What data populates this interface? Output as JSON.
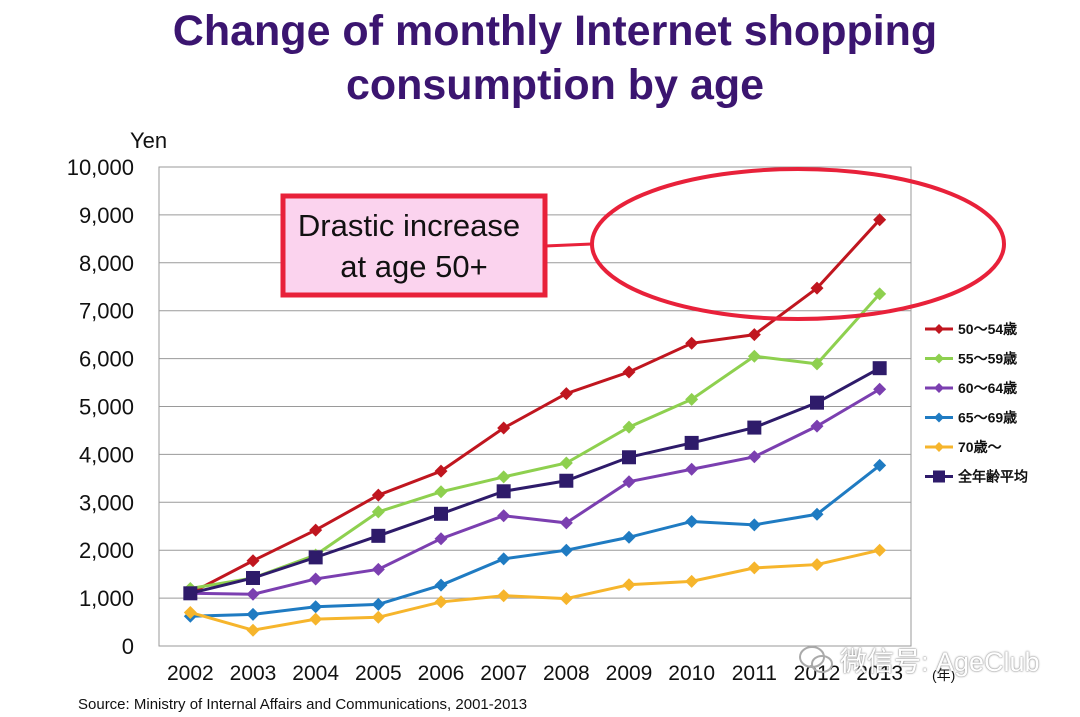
{
  "title": "Change of monthly Internet shopping consumption by age",
  "title_line1": "Change of monthly Internet shopping",
  "title_line2": "consumption by age",
  "source": "Source: Ministry of Internal Affairs and Communications, 2001-2013",
  "watermark": "微信号: AgeClub",
  "callout": {
    "line1": "Drastic increase",
    "line2": "at age 50+",
    "border_color": "#e8213a",
    "fill_color": "#fbd3ee"
  },
  "colors": {
    "title": "#3b1570",
    "highlight": "#e8213a"
  },
  "chart_data": {
    "type": "line",
    "title": "Change of monthly Internet shopping consumption by age",
    "ylabel": "Yen",
    "xunit": "(年)",
    "x": [
      "2002",
      "2003",
      "2004",
      "2005",
      "2006",
      "2007",
      "2008",
      "2009",
      "2010",
      "2011",
      "2012",
      "2013"
    ],
    "ylim": [
      0,
      10000
    ],
    "yticks": [
      "0",
      "1,000",
      "2,000",
      "3,000",
      "4,000",
      "5,000",
      "6,000",
      "7,000",
      "8,000",
      "9,000",
      "10,000"
    ],
    "grid": true,
    "legend_position": "right",
    "series": [
      {
        "name": "50～54歳",
        "color": "#c0161f",
        "marker": "diamond",
        "values": [
          1100,
          1780,
          2420,
          3150,
          3650,
          4550,
          5270,
          5720,
          6320,
          6500,
          7470,
          8900
        ]
      },
      {
        "name": "55～59歳",
        "color": "#8ed04f",
        "marker": "diamond",
        "values": [
          1200,
          1420,
          1900,
          2800,
          3220,
          3530,
          3820,
          4570,
          5150,
          6050,
          5890,
          7350
        ]
      },
      {
        "name": "60～64歳",
        "color": "#7b3fb0",
        "marker": "diamond",
        "values": [
          1100,
          1080,
          1400,
          1600,
          2240,
          2720,
          2570,
          3430,
          3690,
          3950,
          4590,
          5360
        ]
      },
      {
        "name": "65～69歳",
        "color": "#1f7bc2",
        "marker": "diamond",
        "values": [
          620,
          660,
          820,
          870,
          1270,
          1820,
          2000,
          2270,
          2600,
          2530,
          2750,
          3770
        ]
      },
      {
        "name": "70歳～",
        "color": "#f6b52c",
        "marker": "diamond",
        "values": [
          700,
          330,
          560,
          600,
          920,
          1050,
          990,
          1280,
          1350,
          1630,
          1700,
          2000
        ]
      },
      {
        "name": "全年齢平均",
        "color": "#2e1b6a",
        "marker": "square",
        "values": [
          1100,
          1420,
          1850,
          2300,
          2760,
          3230,
          3450,
          3940,
          4240,
          4560,
          5080,
          5800
        ]
      }
    ]
  }
}
